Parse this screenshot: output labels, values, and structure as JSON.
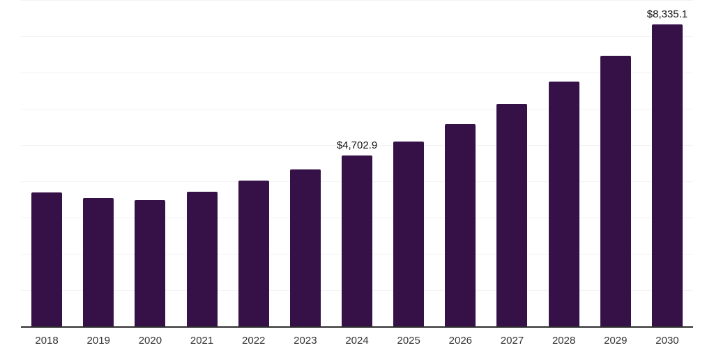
{
  "chart_data": {
    "type": "bar",
    "title": "",
    "xlabel": "",
    "ylabel": "",
    "categories": [
      "2018",
      "2019",
      "2020",
      "2021",
      "2022",
      "2023",
      "2024",
      "2025",
      "2026",
      "2027",
      "2028",
      "2029",
      "2030"
    ],
    "values": [
      3690,
      3540,
      3480,
      3710,
      4020,
      4330,
      4702.9,
      5100,
      5575,
      6130,
      6750,
      7460,
      8335.1
    ],
    "value_labels": {
      "2024": "$4,702.9",
      "2030": "$8,335.1"
    },
    "ylim": [
      0,
      9000
    ],
    "gridline_step": 1000,
    "grid": "horizontal, faint",
    "legend": "none",
    "bar_color": "#351148",
    "grid_color": "#f2f2f2",
    "axis_color": "#2e2e2e",
    "tick_color": "#333333",
    "data_label_color": "#111111"
  }
}
